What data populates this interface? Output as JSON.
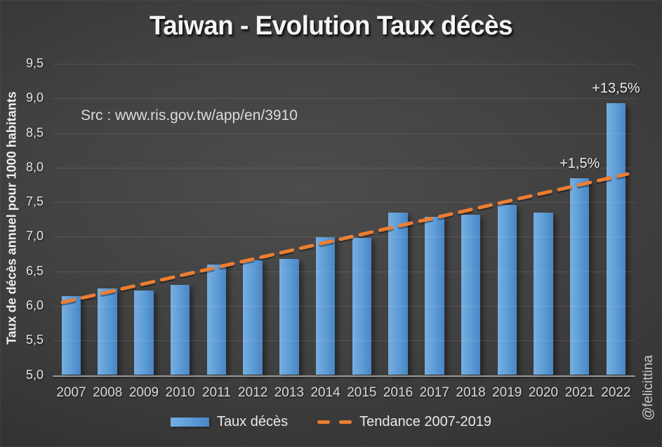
{
  "page": {
    "watermark": "@felicittina"
  },
  "header": {
    "title": "Taiwan - Evolution Taux décès",
    "source_note": "Src : www.ris.gov.tw/app/en/3910"
  },
  "legend": {
    "bars_label": "Taux décès",
    "trend_label": "Tendance 2007-2019"
  },
  "colors": {
    "bar_fill": "#5B9BD5",
    "bar_fill_light": "#77AEE1",
    "bar_fill_dark": "#4A85C4",
    "trend_line": "#ED7D31",
    "background_center": "#4B4B4B",
    "background_edge": "#232323",
    "grid_line": "#5A5A5A",
    "axis_line": "#9B9B9B",
    "text_primary": "#F2F2F2",
    "text_secondary": "#D9D9D9"
  },
  "chart_data": {
    "type": "bar",
    "title": "Taiwan - Evolution Taux décès",
    "xlabel": "",
    "ylabel": "Taux de décès annuel pour 1000 habitants",
    "ylim": [
      5.0,
      9.5
    ],
    "ytick_step": 0.5,
    "ytick_labels": [
      "5,0",
      "5,5",
      "6,0",
      "6,5",
      "7,0",
      "7,5",
      "8,0",
      "8,5",
      "9,0",
      "9,5"
    ],
    "grid": true,
    "legend_position": "bottom",
    "categories": [
      "2007",
      "2008",
      "2009",
      "2010",
      "2011",
      "2012",
      "2013",
      "2014",
      "2015",
      "2016",
      "2017",
      "2018",
      "2019",
      "2020",
      "2021",
      "2022"
    ],
    "series": [
      {
        "name": "Taux décès",
        "type": "bar",
        "color": "#5B9BD5",
        "values": [
          6.14,
          6.25,
          6.22,
          6.3,
          6.6,
          6.66,
          6.68,
          6.99,
          6.98,
          7.35,
          7.29,
          7.32,
          7.46,
          7.35,
          7.85,
          8.93
        ]
      }
    ],
    "trend": {
      "name": "Tendance 2007-2019",
      "color": "#ED7D31",
      "style": "dashed",
      "from": {
        "x": "2007",
        "value": 6.08
      },
      "to": {
        "x": "2022",
        "value": 7.87
      }
    },
    "annotations": [
      {
        "x": "2021",
        "text": "+1,5%"
      },
      {
        "x": "2022",
        "text": "+13,5%"
      }
    ]
  }
}
